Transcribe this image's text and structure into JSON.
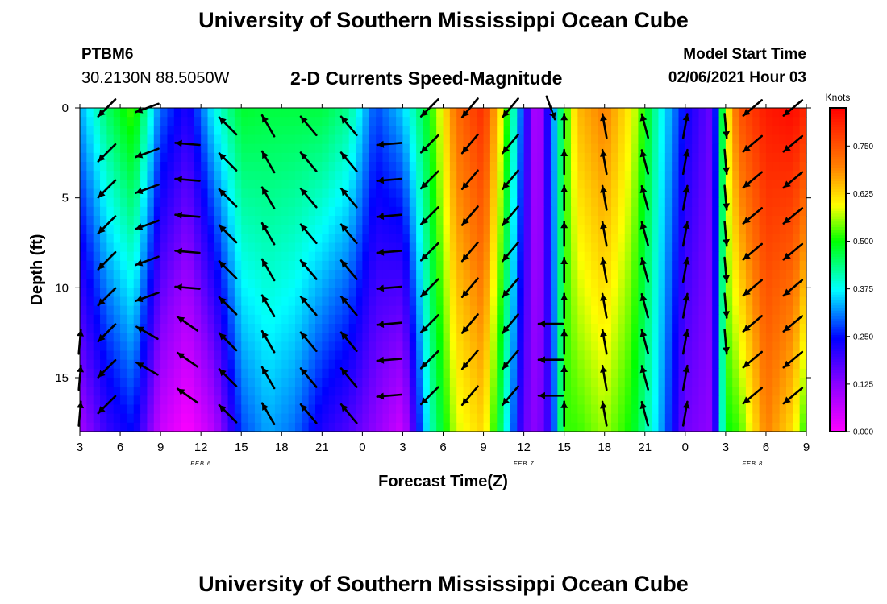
{
  "header": {
    "title": "University of Southern Mississippi Ocean Cube",
    "station_id": "PTBM6",
    "station_coords": "30.2130N 88.5050W",
    "chart_title": "2-D Currents Speed-Magnitude",
    "model_start_label": "Model Start Time",
    "model_start_value": "02/06/2021 Hour 03"
  },
  "footer": {
    "title": "University of Southern Mississippi Ocean Cube"
  },
  "colors": {
    "arrow": "#000000",
    "frame": "#000000",
    "background": "#ffffff"
  },
  "chart_data": {
    "type": "heatmap",
    "title": "2-D Currents Speed-Magnitude",
    "xlabel": "Forecast Time(Z)",
    "ylabel": "Depth (ft)",
    "colorbar_label": "Knots",
    "x_range": [
      0,
      54
    ],
    "ylim": [
      0,
      18
    ],
    "x_ticks": [
      0,
      3,
      6,
      9,
      12,
      15,
      18,
      21,
      24,
      27,
      30,
      33,
      36,
      39,
      42,
      45,
      48,
      51,
      54
    ],
    "x_tick_labels": [
      "3",
      "6",
      "9",
      "12",
      "15",
      "18",
      "21",
      "0",
      "3",
      "6",
      "9",
      "12",
      "15",
      "18",
      "21",
      "0",
      "3",
      "6",
      "9"
    ],
    "y_ticks": [
      0,
      5,
      10,
      15
    ],
    "y_tick_labels": [
      "0",
      "5",
      "10",
      "15"
    ],
    "date_labels": [
      {
        "x": 9,
        "text": "FEB 6"
      },
      {
        "x": 33,
        "text": "FEB 7"
      },
      {
        "x": 50,
        "text": "FEB 8"
      }
    ],
    "colorbar_range": [
      0,
      0.85
    ],
    "colorbar_ticks": [
      0.0,
      0.125,
      0.25,
      0.375,
      0.5,
      0.625,
      0.75
    ],
    "colorbar_tick_labels": [
      "0.000",
      "0.125",
      "0.250",
      "0.375",
      "0.500",
      "0.625",
      "0.750"
    ],
    "colormap_stops": [
      [
        0.0,
        "#ff00ff"
      ],
      [
        0.15,
        "#8a00ff"
      ],
      [
        0.29,
        "#0000ff"
      ],
      [
        0.44,
        "#00ffff"
      ],
      [
        0.59,
        "#00ff00"
      ],
      [
        0.7,
        "#ffff00"
      ],
      [
        0.82,
        "#ff8000"
      ],
      [
        1.0,
        "#ff0000"
      ]
    ],
    "grid": false,
    "speed_columns": [
      {
        "x": 0,
        "surface": 0.33,
        "bottom": 0.1
      },
      {
        "x": 2,
        "surface": 0.45,
        "bottom": 0.2
      },
      {
        "x": 4,
        "surface": 0.53,
        "bottom": 0.25
      },
      {
        "x": 6,
        "surface": 0.3,
        "bottom": 0.06
      },
      {
        "x": 8,
        "surface": 0.22,
        "bottom": 0.0
      },
      {
        "x": 10,
        "surface": 0.38,
        "bottom": 0.08
      },
      {
        "x": 12,
        "surface": 0.48,
        "bottom": 0.28
      },
      {
        "x": 14,
        "surface": 0.47,
        "bottom": 0.33
      },
      {
        "x": 16,
        "surface": 0.47,
        "bottom": 0.3
      },
      {
        "x": 18,
        "surface": 0.47,
        "bottom": 0.22
      },
      {
        "x": 20,
        "surface": 0.43,
        "bottom": 0.18
      },
      {
        "x": 22,
        "surface": 0.28,
        "bottom": 0.12
      },
      {
        "x": 24,
        "surface": 0.35,
        "bottom": 0.05
      },
      {
        "x": 26,
        "surface": 0.5,
        "bottom": 0.4
      },
      {
        "x": 28,
        "surface": 0.72,
        "bottom": 0.58
      },
      {
        "x": 30,
        "surface": 0.8,
        "bottom": 0.63
      },
      {
        "x": 31.5,
        "surface": 0.57,
        "bottom": 0.42
      },
      {
        "x": 33,
        "surface": 0.25,
        "bottom": 0.16
      },
      {
        "x": 34,
        "surface": 0.05,
        "bottom": 0.12
      },
      {
        "x": 35,
        "surface": 0.28,
        "bottom": 0.22
      },
      {
        "x": 36,
        "surface": 0.5,
        "bottom": 0.52
      },
      {
        "x": 37,
        "surface": 0.65,
        "bottom": 0.52
      },
      {
        "x": 39,
        "surface": 0.7,
        "bottom": 0.56
      },
      {
        "x": 41,
        "surface": 0.6,
        "bottom": 0.5
      },
      {
        "x": 43,
        "surface": 0.4,
        "bottom": 0.35
      },
      {
        "x": 45,
        "surface": 0.24,
        "bottom": 0.15
      },
      {
        "x": 47,
        "surface": 0.15,
        "bottom": 0.12
      },
      {
        "x": 48,
        "surface": 0.58,
        "bottom": 0.5
      },
      {
        "x": 49,
        "surface": 0.75,
        "bottom": 0.52
      },
      {
        "x": 51,
        "surface": 0.82,
        "bottom": 0.7
      },
      {
        "x": 53,
        "surface": 0.84,
        "bottom": 0.62
      },
      {
        "x": 54,
        "surface": 0.8,
        "bottom": 0.5
      }
    ],
    "arrow_columns": [
      {
        "x": 0,
        "dir_deg": 5,
        "depths": [
          13,
          15,
          17
        ]
      },
      {
        "x": 2,
        "dir_deg": 225,
        "depths": [
          0,
          2.5,
          4.5,
          6.5,
          8.5,
          10.5,
          12.5,
          14.5,
          16.5
        ]
      },
      {
        "x": 5,
        "dir_deg": 250,
        "depths": [
          0,
          2.5,
          4.5,
          6.5,
          8.5,
          10.5
        ]
      },
      {
        "x": 5,
        "dir_deg": 300,
        "depths": [
          12.5,
          14.5
        ]
      },
      {
        "x": 8,
        "dir_deg": 275,
        "depths": [
          2,
          4,
          6,
          8,
          10
        ]
      },
      {
        "x": 8,
        "dir_deg": 305,
        "depths": [
          12,
          14,
          16
        ]
      },
      {
        "x": 11,
        "dir_deg": 315,
        "depths": [
          1,
          3,
          5,
          7,
          9,
          11,
          13,
          15,
          17
        ]
      },
      {
        "x": 14,
        "dir_deg": 330,
        "depths": [
          1,
          3,
          5,
          7,
          9,
          11,
          13,
          15,
          17
        ]
      },
      {
        "x": 17,
        "dir_deg": 320,
        "depths": [
          1,
          3,
          5,
          7,
          9,
          11,
          13,
          15,
          17
        ]
      },
      {
        "x": 20,
        "dir_deg": 320,
        "depths": [
          1,
          3,
          5,
          7,
          9,
          11,
          13,
          15,
          17
        ]
      },
      {
        "x": 23,
        "dir_deg": 265,
        "depths": [
          2,
          4,
          6,
          8,
          10,
          12,
          14,
          16
        ]
      },
      {
        "x": 26,
        "dir_deg": 225,
        "depths": [
          0,
          2,
          4,
          6,
          8,
          10,
          12,
          14,
          16
        ]
      },
      {
        "x": 29,
        "dir_deg": 220,
        "depths": [
          0,
          2,
          4,
          6,
          8,
          10,
          12,
          14,
          16
        ]
      },
      {
        "x": 32,
        "dir_deg": 220,
        "depths": [
          0,
          2,
          4,
          6,
          8,
          10,
          12,
          14,
          16
        ]
      },
      {
        "x": 35,
        "dir_deg": 160,
        "depths": [
          0
        ]
      },
      {
        "x": 35,
        "dir_deg": 270,
        "depths": [
          12,
          14,
          16
        ]
      },
      {
        "x": 36,
        "dir_deg": 0,
        "depths": [
          1,
          3,
          5,
          7,
          9,
          11,
          13,
          15,
          17
        ]
      },
      {
        "x": 39,
        "dir_deg": 350,
        "depths": [
          1,
          3,
          5,
          7,
          9,
          11,
          13,
          15,
          17
        ]
      },
      {
        "x": 42,
        "dir_deg": 345,
        "depths": [
          1,
          3,
          5,
          7,
          9,
          11,
          13,
          15,
          17
        ]
      },
      {
        "x": 45,
        "dir_deg": 10,
        "depths": [
          1,
          3,
          5,
          7,
          9,
          11,
          13,
          15,
          17
        ]
      },
      {
        "x": 48,
        "dir_deg": 175,
        "depths": [
          1,
          3,
          5,
          7,
          9,
          11,
          13
        ]
      },
      {
        "x": 50,
        "dir_deg": 230,
        "depths": [
          0,
          2,
          4,
          6,
          8,
          10,
          12,
          14,
          16
        ]
      },
      {
        "x": 53,
        "dir_deg": 230,
        "depths": [
          0,
          2,
          4,
          6,
          8,
          10,
          12,
          14,
          16
        ]
      }
    ]
  }
}
